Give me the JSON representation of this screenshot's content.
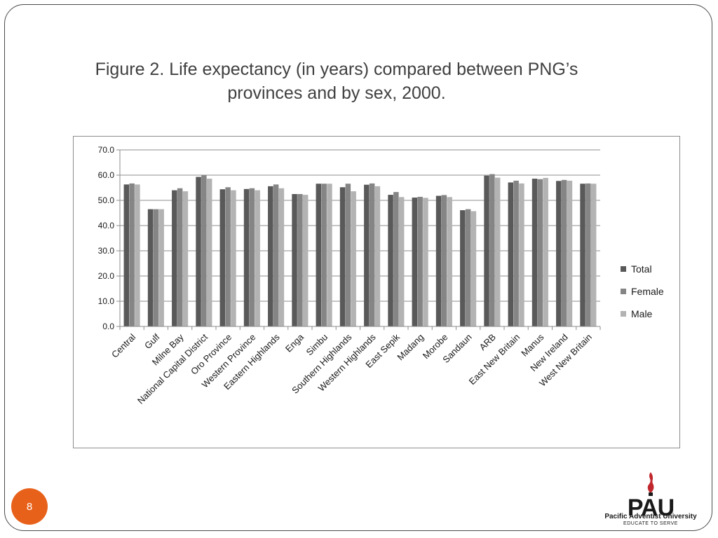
{
  "slide": {
    "title_line1": "Figure 2.  Life expectancy (in years) compared between PNG’s",
    "title_line2": "provinces and by sex, 2000.",
    "page_number": "8"
  },
  "logo": {
    "mark": "PAU",
    "name": "Pacific Adventist University",
    "motto": "EDUCATE TO SERVE",
    "icon": "flame-icon"
  },
  "colors": {
    "total": "#595959",
    "female": "#858585",
    "male": "#b3b3b3",
    "badge": "#e8611a"
  },
  "chart_data": {
    "type": "bar",
    "title": "",
    "xlabel": "",
    "ylabel": "",
    "ylim": [
      0,
      70
    ],
    "yticks": [
      "0.0",
      "10.0",
      "20.0",
      "30.0",
      "40.0",
      "50.0",
      "60.0",
      "70.0"
    ],
    "grid": true,
    "legend_position": "right",
    "categories": [
      "Central",
      "Gulf",
      "Milne Bay",
      "National Capital District",
      "Oro Province",
      "Western Province",
      "Eastern Highlands",
      "Enga",
      "Simbu",
      "Southern Highlands",
      "Western Highlands",
      "East Sepik",
      "Madang",
      "Morobe",
      "Sandaun",
      "ARB",
      "East New Britain",
      "Manus",
      "New Ireland",
      "West New Britain"
    ],
    "series": [
      {
        "name": "Total",
        "values": [
          56.3,
          46.5,
          54.0,
          59.3,
          54.4,
          54.5,
          55.6,
          52.5,
          56.6,
          55.2,
          56.2,
          52.2,
          51.1,
          51.8,
          46.1,
          59.8,
          57.1,
          58.6,
          57.7,
          56.6
        ]
      },
      {
        "name": "Female",
        "values": [
          56.7,
          46.5,
          54.8,
          59.9,
          55.2,
          54.8,
          56.3,
          52.5,
          56.6,
          56.6,
          56.7,
          53.3,
          51.4,
          52.1,
          46.5,
          60.4,
          57.8,
          58.4,
          58.1,
          56.7
        ]
      },
      {
        "name": "Male",
        "values": [
          56.3,
          46.5,
          53.6,
          58.6,
          54.0,
          54.0,
          54.8,
          52.2,
          56.6,
          53.6,
          55.6,
          51.3,
          51.0,
          51.3,
          45.7,
          59.0,
          56.7,
          58.9,
          57.8,
          56.6
        ]
      }
    ]
  }
}
